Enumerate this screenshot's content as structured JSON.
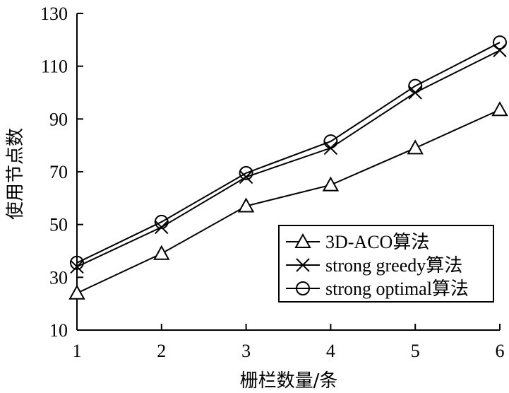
{
  "chart_data": {
    "type": "line",
    "title": "",
    "xlabel": "栅栏数量/条",
    "ylabel": "使用节点数",
    "x": [
      1,
      2,
      3,
      4,
      5,
      6
    ],
    "x_ticks": [
      "1",
      "2",
      "3",
      "4",
      "5",
      "6"
    ],
    "xlim": [
      1,
      6
    ],
    "ylim": [
      10,
      130
    ],
    "y_ticks": [
      10,
      30,
      50,
      70,
      90,
      110,
      130
    ],
    "grid": false,
    "legend_position": "bottom-right",
    "series": [
      {
        "name": "3D-ACO算法",
        "marker": "triangle",
        "values": [
          24,
          39,
          57,
          65,
          79,
          93.5
        ]
      },
      {
        "name": "strong greedy算法",
        "marker": "x",
        "values": [
          34,
          49,
          68,
          79,
          100,
          116
        ]
      },
      {
        "name": "strong optimal算法",
        "marker": "circle",
        "values": [
          35.5,
          51,
          69.5,
          81.5,
          102.5,
          119
        ]
      }
    ],
    "line_color": "#000000"
  }
}
